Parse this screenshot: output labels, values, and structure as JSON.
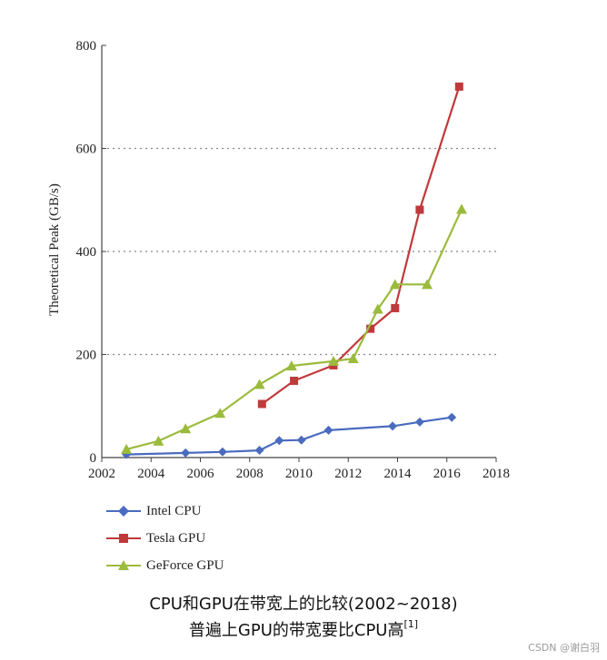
{
  "chart_data": {
    "type": "line",
    "ylabel": "Theoretical Peak (GB/s)",
    "xlabel": "",
    "xlim": [
      2002,
      2018
    ],
    "ylim": [
      0,
      800
    ],
    "x_ticks": [
      2002,
      2004,
      2006,
      2008,
      2010,
      2012,
      2014,
      2016,
      2018
    ],
    "y_ticks": [
      0,
      200,
      400,
      600,
      800
    ],
    "grid": "horizontal dotted",
    "legend_position": "bottom-left",
    "series": [
      {
        "name": "Intel CPU",
        "color": "#4a6bbf",
        "marker": "diamond",
        "points": [
          [
            2003.0,
            6
          ],
          [
            2005.4,
            9
          ],
          [
            2006.9,
            11
          ],
          [
            2008.4,
            14
          ],
          [
            2009.2,
            33
          ],
          [
            2010.1,
            34
          ],
          [
            2011.2,
            53
          ],
          [
            2013.8,
            61
          ],
          [
            2014.9,
            69
          ],
          [
            2016.2,
            78
          ]
        ]
      },
      {
        "name": "Tesla GPU",
        "color": "#c0393b",
        "marker": "square",
        "points": [
          [
            2008.5,
            104
          ],
          [
            2009.8,
            149
          ],
          [
            2011.4,
            179
          ],
          [
            2012.9,
            250
          ],
          [
            2013.9,
            290
          ],
          [
            2014.9,
            481
          ],
          [
            2016.5,
            720
          ]
        ]
      },
      {
        "name": "GeForce GPU",
        "color": "#9bbb3c",
        "marker": "triangle",
        "points": [
          [
            2003.0,
            16
          ],
          [
            2004.3,
            32
          ],
          [
            2005.4,
            56
          ],
          [
            2006.8,
            86
          ],
          [
            2008.4,
            142
          ],
          [
            2009.7,
            178
          ],
          [
            2011.4,
            187
          ],
          [
            2012.2,
            192
          ],
          [
            2013.2,
            288
          ],
          [
            2013.9,
            336
          ],
          [
            2015.2,
            336
          ],
          [
            2016.6,
            482
          ]
        ]
      }
    ]
  },
  "legend": {
    "items": [
      {
        "label": "Intel CPU",
        "color": "#4a6bbf",
        "marker": "diamond"
      },
      {
        "label": "Tesla GPU",
        "color": "#c0393b",
        "marker": "square"
      },
      {
        "label": "GeForce GPU",
        "color": "#9bbb3c",
        "marker": "triangle"
      }
    ]
  },
  "caption": {
    "line1": "CPU和GPU在带宽上的比较(2002~2018)",
    "line2": "普遍上GPU的带宽要比CPU高",
    "reference": "[1]"
  },
  "credit": "CSDN @谢白羽"
}
